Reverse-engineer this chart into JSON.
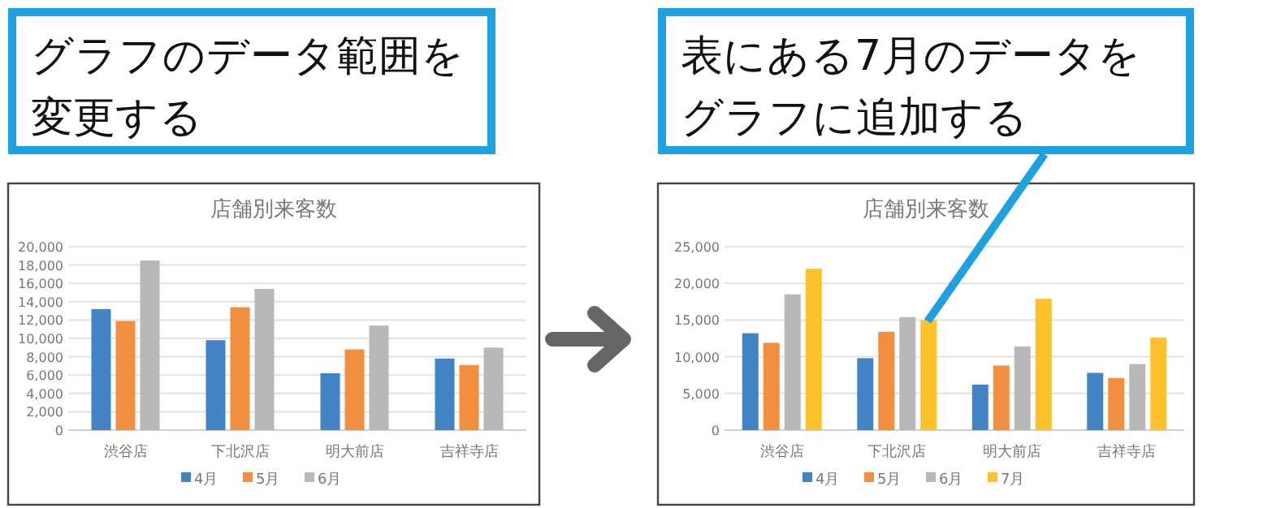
{
  "chart_data": [
    {
      "type": "bar",
      "title": "店舗別来客数",
      "categories": [
        "渋谷店",
        "下北沢店",
        "明大前店",
        "吉祥寺店"
      ],
      "series": [
        {
          "name": "4月",
          "color": "#4183c4",
          "values": [
            13200,
            9800,
            6200,
            7800
          ]
        },
        {
          "name": "5月",
          "color": "#f28e3f",
          "values": [
            11900,
            13400,
            8800,
            7100
          ]
        },
        {
          "name": "6月",
          "color": "#b8b8b8",
          "values": [
            18500,
            15400,
            11400,
            9000
          ]
        }
      ],
      "ylim": [
        0,
        20000
      ],
      "yticks": [
        {
          "value": 0,
          "label": "0"
        },
        {
          "value": 2000,
          "label": "2,000"
        },
        {
          "value": 4000,
          "label": "4,000"
        },
        {
          "value": 6000,
          "label": "6,000"
        },
        {
          "value": 8000,
          "label": "8,000"
        },
        {
          "value": 10000,
          "label": "10,000"
        },
        {
          "value": 12000,
          "label": "12,000"
        },
        {
          "value": 14000,
          "label": "14,000"
        },
        {
          "value": 16000,
          "label": "16,000"
        },
        {
          "value": 18000,
          "label": "18,000"
        },
        {
          "value": 20000,
          "label": "20,000"
        }
      ],
      "grid": "y",
      "legend": "bottom",
      "annotations": [
        "グラフのデータ範囲を変更する"
      ]
    },
    {
      "type": "bar",
      "title": "店舗別来客数",
      "categories": [
        "渋谷店",
        "下北沢店",
        "明大前店",
        "吉祥寺店"
      ],
      "series": [
        {
          "name": "4月",
          "color": "#4183c4",
          "values": [
            13200,
            9800,
            6200,
            7800
          ]
        },
        {
          "name": "5月",
          "color": "#f28e3f",
          "values": [
            11900,
            13400,
            8800,
            7100
          ]
        },
        {
          "name": "6月",
          "color": "#b8b8b8",
          "values": [
            18500,
            15400,
            11400,
            9000
          ]
        },
        {
          "name": "7月",
          "color": "#fdc12a",
          "values": [
            22000,
            15000,
            17900,
            12600
          ]
        }
      ],
      "ylim": [
        0,
        25000
      ],
      "yticks": [
        {
          "value": 0,
          "label": "0"
        },
        {
          "value": 5000,
          "label": "5,000"
        },
        {
          "value": 10000,
          "label": "10,000"
        },
        {
          "value": 15000,
          "label": "15,000"
        },
        {
          "value": 20000,
          "label": "20,000"
        },
        {
          "value": 25000,
          "label": "25,000"
        }
      ],
      "grid": "y",
      "legend": "bottom",
      "annotations": [
        "表にある7月のデータをグラフに追加する"
      ]
    }
  ]
}
